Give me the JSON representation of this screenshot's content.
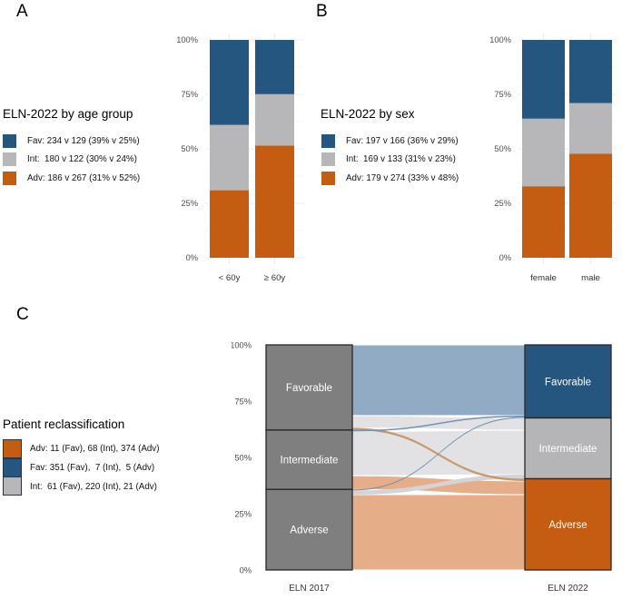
{
  "panels": {
    "A": {
      "letter": "A",
      "title": "ELN-2022 by age group",
      "legend": [
        {
          "name": "Fav",
          "color": "#25567f",
          "label": "Fav: 234 v 129 (39% v 25%)"
        },
        {
          "name": "Int",
          "color": "#b7b7b9",
          "label": "Int:  180 v 122 (30% v 24%)"
        },
        {
          "name": "Adv",
          "color": "#c45c12",
          "label": "Adv: 186 v 267 (31% v 52%)"
        }
      ]
    },
    "B": {
      "letter": "B",
      "title": "ELN-2022 by sex",
      "legend": [
        {
          "name": "Fav",
          "color": "#25567f",
          "label": "Fav: 197 v 166 (36% v 29%)"
        },
        {
          "name": "Int",
          "color": "#b7b7b9",
          "label": "Int:  169 v 133 (31% v 23%)"
        },
        {
          "name": "Adv",
          "color": "#c45c12",
          "label": "Adv: 179 v 274 (33% v 48%)"
        }
      ]
    },
    "C": {
      "letter": "C",
      "title": "Patient reclassification",
      "legend": [
        {
          "name": "Adv",
          "color": "#c45c12",
          "label": "Adv: 11 (Fav), 68 (Int), 374 (Adv)"
        },
        {
          "name": "Fav",
          "color": "#25567f",
          "label": "Fav: 351 (Fav),  7 (Int),  5 (Adv)"
        },
        {
          "name": "Int",
          "color": "#b7b7b9",
          "label": "Int:  61 (Fav), 220 (Int), 21 (Adv)"
        }
      ]
    }
  },
  "colors": {
    "fav_blue": "#25567f",
    "int_gray": "#b7b7b9",
    "adv_orange": "#c45c12",
    "node_gray_2017": "#7f7f7f",
    "node_border": "#262626",
    "grid_major": "#ececec",
    "grid_minor": "#f5f5f5"
  },
  "chart_data": [
    {
      "type": "bar",
      "panel": "A",
      "stacked": true,
      "normalized": "percent",
      "title": "ELN-2022 by age group",
      "categories": [
        "< 60y",
        "≥ 60y"
      ],
      "series": [
        {
          "name": "Fav",
          "color": "#25567f",
          "values": [
            234,
            129
          ],
          "percents": [
            39,
            25
          ]
        },
        {
          "name": "Int",
          "color": "#b7b7b9",
          "values": [
            180,
            122
          ],
          "percents": [
            30,
            24
          ]
        },
        {
          "name": "Adv",
          "color": "#c45c12",
          "values": [
            186,
            267
          ],
          "percents": [
            31,
            52
          ]
        }
      ],
      "yticks": [
        "0%",
        "25%",
        "50%",
        "75%",
        "100%"
      ],
      "ylim": [
        0,
        100
      ],
      "grid": true,
      "legend_position": "left"
    },
    {
      "type": "bar",
      "panel": "B",
      "stacked": true,
      "normalized": "percent",
      "title": "ELN-2022 by sex",
      "categories": [
        "female",
        "male"
      ],
      "series": [
        {
          "name": "Fav",
          "color": "#25567f",
          "values": [
            197,
            166
          ],
          "percents": [
            36,
            29
          ]
        },
        {
          "name": "Int",
          "color": "#b7b7b9",
          "values": [
            169,
            133
          ],
          "percents": [
            31,
            23
          ]
        },
        {
          "name": "Adv",
          "color": "#c45c12",
          "values": [
            179,
            274
          ],
          "percents": [
            33,
            48
          ]
        }
      ],
      "yticks": [
        "0%",
        "25%",
        "50%",
        "75%",
        "100%"
      ],
      "ylim": [
        0,
        100
      ],
      "grid": true,
      "legend_position": "left"
    },
    {
      "type": "sankey",
      "panel": "C",
      "title": "Patient reclassification",
      "axes": [
        "ELN 2017",
        "ELN 2022"
      ],
      "yticks": [
        "0%",
        "25%",
        "50%",
        "75%",
        "100%"
      ],
      "left_nodes": [
        {
          "label": "Favorable",
          "color": "#7f7f7f"
        },
        {
          "label": "Intermediate",
          "color": "#7f7f7f"
        },
        {
          "label": "Adverse",
          "color": "#7f7f7f"
        }
      ],
      "right_nodes": [
        {
          "label": "Favorable",
          "color": "#25567f"
        },
        {
          "label": "Intermediate",
          "color": "#b5b5b7"
        },
        {
          "label": "Adverse",
          "color": "#c45c12"
        }
      ],
      "flows": [
        {
          "from": "Favorable",
          "to": "Favorable",
          "value": 351,
          "color": "#92abc5"
        },
        {
          "from": "Favorable",
          "to": "Intermediate",
          "value": 61,
          "color": "#e2e2e4"
        },
        {
          "from": "Intermediate",
          "to": "Intermediate",
          "value": 220,
          "color": "#e2e2e4"
        },
        {
          "from": "Intermediate",
          "to": "Adverse",
          "value": 68,
          "color": "#e6ae88"
        },
        {
          "from": "Adverse",
          "to": "Adverse",
          "value": 374,
          "color": "#e6ae88"
        },
        {
          "from": "Adverse",
          "to": "Intermediate",
          "value": 21,
          "color": "#d4d4d8"
        },
        {
          "from": "Favorable",
          "to": "Adverse",
          "value": 11,
          "color": "#c79a6e"
        },
        {
          "from": "Intermediate",
          "to": "Favorable",
          "value": 7,
          "color": "#7191b2"
        },
        {
          "from": "Adverse",
          "to": "Favorable",
          "value": 5,
          "color": "#7191b2"
        }
      ]
    }
  ]
}
